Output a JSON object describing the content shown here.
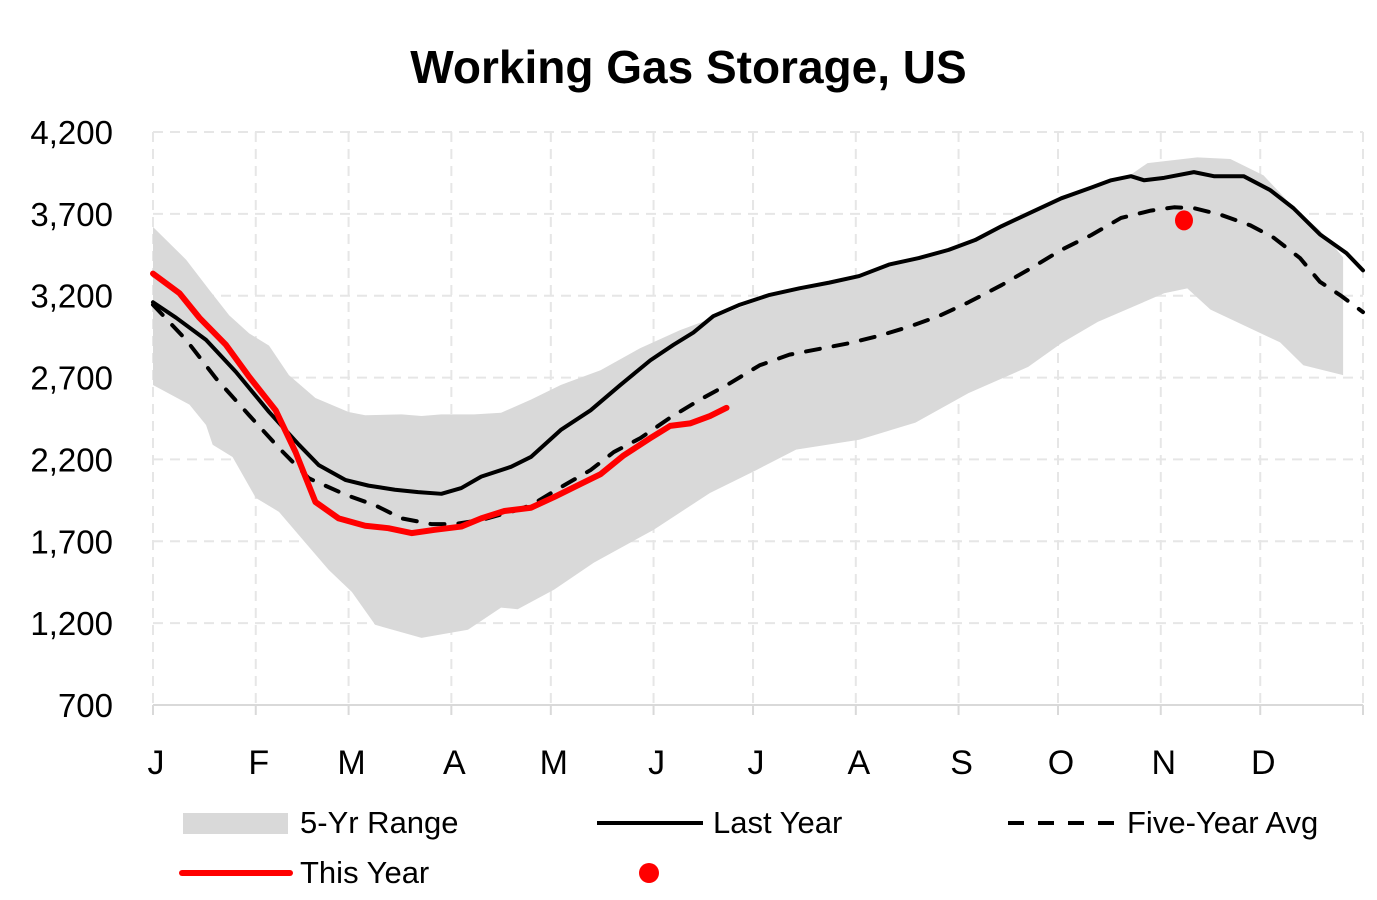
{
  "chart_data": {
    "type": "line",
    "title": "Working Gas Storage, US",
    "xlabel": "",
    "ylabel": "",
    "x_unit": "day of year",
    "xlim": [
      0,
      365
    ],
    "ylim": [
      700,
      4200
    ],
    "yticks": [
      700,
      1200,
      1700,
      2200,
      2700,
      3200,
      3700,
      4200
    ],
    "ytick_labels": [
      "700",
      "1,200",
      "1,700",
      "2,200",
      "2,700",
      "3,200",
      "3,700",
      "4,200"
    ],
    "xticks": [
      0,
      31,
      59,
      90,
      120,
      151,
      181,
      212,
      243,
      273,
      304,
      334,
      365
    ],
    "xtick_labels": [
      "J",
      "F",
      "M",
      "A",
      "M",
      "J",
      "J",
      "A",
      "S",
      "O",
      "N",
      "D"
    ],
    "grid": true,
    "legend_position": "bottom",
    "range": {
      "name": "5-Yr Range",
      "color": "#d9d9d9",
      "upper": [
        [
          0,
          3620
        ],
        [
          10,
          3420
        ],
        [
          17,
          3235
        ],
        [
          23,
          3080
        ],
        [
          29,
          2970
        ],
        [
          35,
          2895
        ],
        [
          41,
          2715
        ],
        [
          49,
          2575
        ],
        [
          59,
          2490
        ],
        [
          64,
          2470
        ],
        [
          75,
          2475
        ],
        [
          81,
          2465
        ],
        [
          87,
          2475
        ],
        [
          97,
          2475
        ],
        [
          105,
          2485
        ],
        [
          114,
          2565
        ],
        [
          123,
          2655
        ],
        [
          135,
          2745
        ],
        [
          147,
          2880
        ],
        [
          159,
          2990
        ],
        [
          171,
          3080
        ],
        [
          183,
          3175
        ],
        [
          190,
          3235
        ],
        [
          206,
          3285
        ],
        [
          213,
          3310
        ],
        [
          225,
          3400
        ],
        [
          243,
          3500
        ],
        [
          256,
          3640
        ],
        [
          274,
          3810
        ],
        [
          286,
          3880
        ],
        [
          295,
          3940
        ],
        [
          300,
          4010
        ],
        [
          315,
          4045
        ],
        [
          325,
          4035
        ],
        [
          335,
          3935
        ],
        [
          344,
          3740
        ],
        [
          352,
          3600
        ],
        [
          359,
          3435
        ]
      ],
      "lower": [
        [
          0,
          2655
        ],
        [
          11,
          2535
        ],
        [
          16,
          2410
        ],
        [
          18,
          2290
        ],
        [
          24,
          2215
        ],
        [
          31,
          1965
        ],
        [
          38,
          1880
        ],
        [
          46,
          1690
        ],
        [
          53,
          1525
        ],
        [
          60,
          1390
        ],
        [
          67,
          1190
        ],
        [
          81,
          1110
        ],
        [
          95,
          1160
        ],
        [
          105,
          1295
        ],
        [
          110,
          1285
        ],
        [
          121,
          1405
        ],
        [
          133,
          1570
        ],
        [
          151,
          1770
        ],
        [
          168,
          1995
        ],
        [
          182,
          2135
        ],
        [
          194,
          2260
        ],
        [
          213,
          2320
        ],
        [
          230,
          2425
        ],
        [
          246,
          2605
        ],
        [
          264,
          2765
        ],
        [
          274,
          2910
        ],
        [
          285,
          3040
        ],
        [
          305,
          3215
        ],
        [
          312,
          3245
        ],
        [
          319,
          3115
        ],
        [
          340,
          2915
        ],
        [
          347,
          2775
        ],
        [
          359,
          2715
        ]
      ]
    },
    "series": [
      {
        "name": "Last Year",
        "color": "#000000",
        "style": "solid",
        "points": [
          [
            0,
            3160
          ],
          [
            7,
            3065
          ],
          [
            16,
            2930
          ],
          [
            25,
            2735
          ],
          [
            35,
            2490
          ],
          [
            44,
            2290
          ],
          [
            50,
            2165
          ],
          [
            58,
            2075
          ],
          [
            65,
            2040
          ],
          [
            73,
            2015
          ],
          [
            80,
            2000
          ],
          [
            87,
            1990
          ],
          [
            93,
            2025
          ],
          [
            99,
            2095
          ],
          [
            108,
            2155
          ],
          [
            114,
            2215
          ],
          [
            123,
            2380
          ],
          [
            132,
            2500
          ],
          [
            141,
            2655
          ],
          [
            150,
            2805
          ],
          [
            157,
            2900
          ],
          [
            163,
            2975
          ],
          [
            169,
            3075
          ],
          [
            177,
            3145
          ],
          [
            186,
            3205
          ],
          [
            195,
            3245
          ],
          [
            204,
            3280
          ],
          [
            213,
            3320
          ],
          [
            222,
            3390
          ],
          [
            231,
            3430
          ],
          [
            240,
            3480
          ],
          [
            248,
            3540
          ],
          [
            256,
            3625
          ],
          [
            265,
            3710
          ],
          [
            274,
            3795
          ],
          [
            283,
            3860
          ],
          [
            289,
            3905
          ],
          [
            295,
            3930
          ],
          [
            299,
            3905
          ],
          [
            305,
            3920
          ],
          [
            314,
            3955
          ],
          [
            320,
            3930
          ],
          [
            329,
            3930
          ],
          [
            337,
            3845
          ],
          [
            344,
            3735
          ],
          [
            352,
            3575
          ],
          [
            360,
            3460
          ],
          [
            365,
            3355
          ]
        ]
      },
      {
        "name": "Five-Year Avg",
        "color": "#000000",
        "style": "dashed",
        "points": [
          [
            0,
            3145
          ],
          [
            10,
            2930
          ],
          [
            19,
            2695
          ],
          [
            29,
            2470
          ],
          [
            38,
            2270
          ],
          [
            47,
            2085
          ],
          [
            58,
            1985
          ],
          [
            67,
            1920
          ],
          [
            75,
            1840
          ],
          [
            84,
            1805
          ],
          [
            91,
            1805
          ],
          [
            99,
            1830
          ],
          [
            108,
            1880
          ],
          [
            114,
            1920
          ],
          [
            123,
            2030
          ],
          [
            132,
            2135
          ],
          [
            139,
            2245
          ],
          [
            147,
            2330
          ],
          [
            156,
            2455
          ],
          [
            165,
            2565
          ],
          [
            174,
            2665
          ],
          [
            183,
            2775
          ],
          [
            192,
            2840
          ],
          [
            201,
            2875
          ],
          [
            210,
            2910
          ],
          [
            219,
            2955
          ],
          [
            228,
            3010
          ],
          [
            237,
            3075
          ],
          [
            246,
            3160
          ],
          [
            256,
            3265
          ],
          [
            265,
            3370
          ],
          [
            274,
            3480
          ],
          [
            283,
            3570
          ],
          [
            292,
            3675
          ],
          [
            301,
            3720
          ],
          [
            308,
            3740
          ],
          [
            314,
            3735
          ],
          [
            322,
            3695
          ],
          [
            331,
            3630
          ],
          [
            338,
            3555
          ],
          [
            346,
            3430
          ],
          [
            352,
            3285
          ],
          [
            358,
            3205
          ],
          [
            365,
            3100
          ]
        ]
      },
      {
        "name": "This Year",
        "color": "#ff0000",
        "style": "solid",
        "points": [
          [
            0,
            3335
          ],
          [
            8,
            3215
          ],
          [
            14,
            3065
          ],
          [
            22,
            2900
          ],
          [
            29,
            2705
          ],
          [
            37,
            2500
          ],
          [
            43,
            2245
          ],
          [
            49,
            1940
          ],
          [
            56,
            1840
          ],
          [
            64,
            1795
          ],
          [
            71,
            1780
          ],
          [
            78,
            1750
          ],
          [
            85,
            1770
          ],
          [
            93,
            1790
          ],
          [
            99,
            1840
          ],
          [
            106,
            1885
          ],
          [
            114,
            1905
          ],
          [
            121,
            1970
          ],
          [
            129,
            2050
          ],
          [
            135,
            2110
          ],
          [
            142,
            2225
          ],
          [
            150,
            2330
          ],
          [
            156,
            2405
          ],
          [
            162,
            2420
          ],
          [
            168,
            2465
          ],
          [
            173,
            2515
          ]
        ]
      },
      {
        "name": "",
        "color": "#ff0000",
        "style": "marker",
        "points": [
          [
            311,
            3660
          ]
        ]
      }
    ],
    "legend": [
      {
        "label": "5-Yr Range",
        "kind": "area"
      },
      {
        "label": "Last Year",
        "kind": "solid-black"
      },
      {
        "label": "Five-Year Avg",
        "kind": "dashed-black"
      },
      {
        "label": "This Year",
        "kind": "solid-red"
      },
      {
        "label": "",
        "kind": "red-marker"
      }
    ]
  }
}
